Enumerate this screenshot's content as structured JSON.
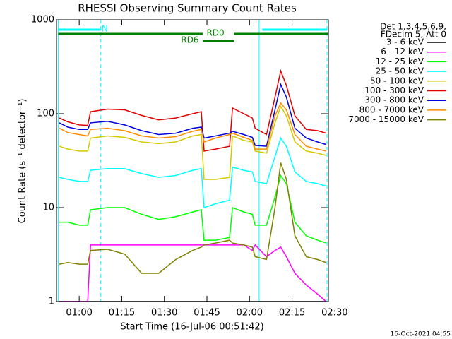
{
  "chart_data": {
    "type": "line",
    "title": "RHESSI Observing Summary Count Rates",
    "xlabel": "Start Time (16-Jul-06 00:51:42)",
    "ylabel": "Count Rate (s⁻¹ detector⁻¹)",
    "legend_header": [
      "Det 1,3,4,5,6,9,",
      "FDecim 5, Att 0"
    ],
    "footer": "16-Oct-2021 04:55",
    "log_y": true,
    "ylim": [
      1,
      1000
    ],
    "yticks": [
      1,
      10,
      100,
      1000
    ],
    "xlim": [
      52,
      147.8
    ],
    "xticks": [
      {
        "value": 60,
        "label": "01:00"
      },
      {
        "value": 75,
        "label": "01:15"
      },
      {
        "value": 90,
        "label": "01:30"
      },
      {
        "value": 105,
        "label": "01:45"
      },
      {
        "value": 120,
        "label": "02:00"
      },
      {
        "value": 135,
        "label": "02:15"
      },
      {
        "value": 150,
        "label": "02:30"
      }
    ],
    "vlines": [
      {
        "x": 52.6,
        "color": "#00ffff",
        "dashed": false
      },
      {
        "x": 67.6,
        "color": "#00ffff",
        "dashed": true
      },
      {
        "x": 123.4,
        "color": "#00ffff",
        "dashed": false
      },
      {
        "x": 147.3,
        "color": "#00ffff",
        "dashed": true
      }
    ],
    "flag_bars": [
      {
        "label": "N",
        "color": "#00ffff",
        "level": 0,
        "ranges": [
          [
            52.6,
            67.6
          ],
          [
            124.5,
            147.3
          ]
        ],
        "label_x": 69
      },
      {
        "label": "RD0",
        "color": "#007f00",
        "level": 1,
        "ranges": [
          [
            52.6,
            103.5
          ],
          [
            114.5,
            147.8
          ]
        ],
        "label_x": 108
      },
      {
        "label": "RD6",
        "color": "#007f00",
        "level": 2,
        "ranges": [
          [
            103.5,
            114.5
          ]
        ],
        "label_x": 99
      }
    ],
    "x": [
      53,
      56,
      60,
      63,
      64,
      70,
      76,
      82,
      88,
      94,
      100,
      103,
      104,
      108,
      113,
      114,
      118,
      121,
      122,
      126,
      129,
      131,
      133,
      136,
      140,
      144,
      147
    ],
    "series": [
      {
        "name": "3 - 6 keV",
        "color": "#000000",
        "values": [
          1,
          1,
          1,
          1,
          1,
          1,
          1,
          1,
          1,
          1,
          1,
          1,
          1,
          1,
          1,
          1,
          1,
          1,
          1,
          1,
          1,
          1,
          1,
          1,
          1,
          1,
          1
        ]
      },
      {
        "name": "6 - 12 keV",
        "color": "#ff00ff",
        "values": [
          1,
          1,
          1,
          1,
          4,
          4,
          4,
          4,
          4,
          4,
          4,
          4,
          4,
          4,
          4,
          4,
          4,
          3.5,
          4,
          3,
          3.5,
          3.8,
          3,
          2,
          1.5,
          1.2,
          1
        ]
      },
      {
        "name": "12 - 25 keV",
        "color": "#00ff00",
        "values": [
          7,
          7,
          6.5,
          6.5,
          9.5,
          10,
          10,
          8.5,
          7.5,
          8,
          9,
          9.5,
          4.5,
          4.5,
          4.8,
          10,
          9,
          8.5,
          6.5,
          6.5,
          13,
          22,
          18,
          7,
          5,
          4.5,
          4.2
        ]
      },
      {
        "name": "25 - 50 keV",
        "color": "#00ffff",
        "values": [
          21,
          20,
          19,
          19,
          25,
          26,
          26,
          23,
          21,
          22,
          25,
          26,
          10,
          11,
          12,
          27,
          25,
          24,
          19,
          18,
          35,
          55,
          45,
          24,
          19,
          18,
          17
        ]
      },
      {
        "name": "50 - 100 keV",
        "color": "#d4c800",
        "values": [
          45,
          42,
          40,
          40,
          55,
          58,
          56,
          50,
          48,
          50,
          58,
          60,
          20,
          20,
          21,
          58,
          52,
          50,
          40,
          38,
          80,
          120,
          95,
          50,
          40,
          38,
          36
        ]
      },
      {
        "name": "100 - 300 keV",
        "color": "#e00000",
        "values": [
          90,
          82,
          76,
          75,
          105,
          112,
          110,
          96,
          86,
          90,
          100,
          105,
          40,
          42,
          45,
          115,
          100,
          90,
          70,
          60,
          150,
          285,
          200,
          95,
          68,
          66,
          62
        ]
      },
      {
        "name": "300 - 800 keV",
        "color": "#0000e0",
        "values": [
          80,
          72,
          68,
          68,
          80,
          83,
          76,
          66,
          60,
          62,
          70,
          72,
          55,
          58,
          62,
          65,
          60,
          56,
          46,
          45,
          110,
          205,
          150,
          70,
          55,
          50,
          47
        ]
      },
      {
        "name": "800 - 7000 keV",
        "color": "#ff8c00",
        "values": [
          70,
          63,
          60,
          58,
          68,
          70,
          66,
          58,
          55,
          57,
          65,
          68,
          50,
          55,
          60,
          62,
          56,
          52,
          42,
          42,
          95,
          130,
          110,
          60,
          45,
          42,
          40
        ]
      },
      {
        "name": "7000 - 15000 keV",
        "color": "#808000",
        "values": [
          2.5,
          2.6,
          2.5,
          2.5,
          3.5,
          3.6,
          3.2,
          2,
          2,
          2.8,
          3.5,
          3.8,
          4,
          4.2,
          4.5,
          4.2,
          4,
          3.8,
          3,
          2.8,
          10,
          30,
          20,
          5,
          3,
          2.8,
          2.6
        ]
      }
    ]
  }
}
